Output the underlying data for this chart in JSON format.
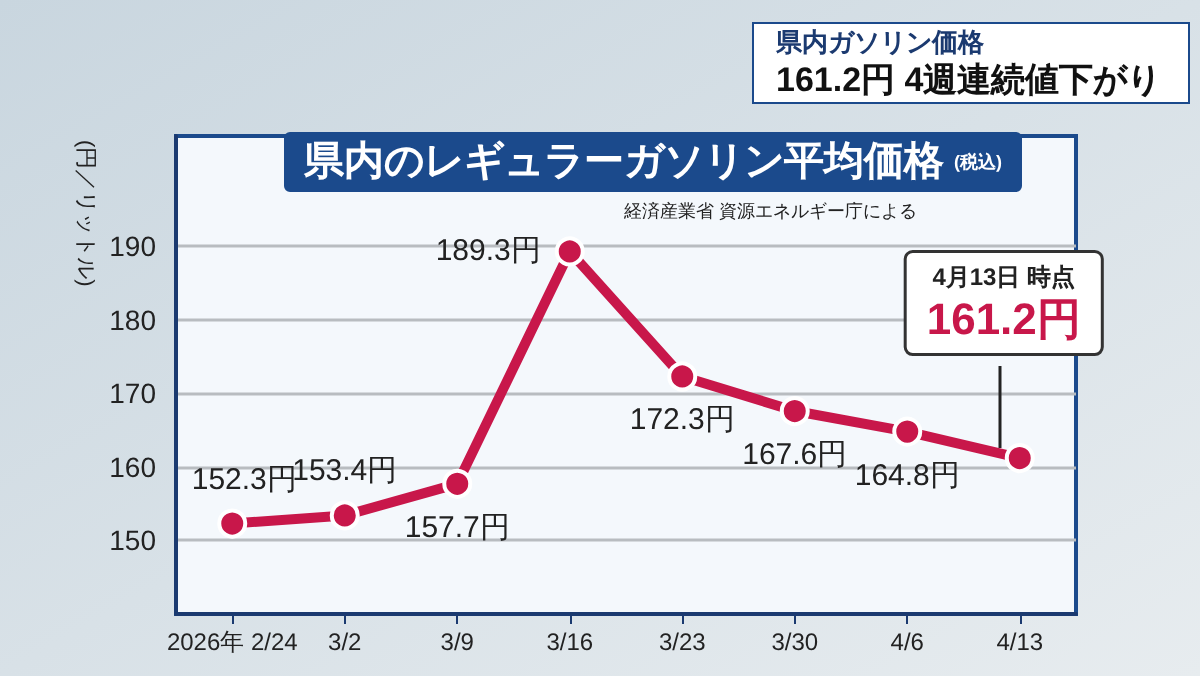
{
  "chart_data": {
    "type": "line",
    "title": "県内のレギュラーガソリン平均価格",
    "subtitle": "(税込)",
    "ylabel": "(円／リットル)",
    "categories": [
      "2026年 2/24",
      "3/2",
      "3/9",
      "3/16",
      "3/23",
      "3/30",
      "4/6",
      "4/13"
    ],
    "series": [
      {
        "color": "#c8174a",
        "values": [
          152.3,
          153.4,
          157.7,
          189.3,
          172.3,
          167.6,
          164.8,
          161.2
        ],
        "value_labels": [
          "152.3円",
          "153.4円",
          "157.7円",
          "189.3円",
          "172.3円",
          "167.6円",
          "164.8円",
          "161.2円"
        ]
      }
    ],
    "ylim": [
      140,
      205
    ],
    "yticks": [
      150,
      160,
      170,
      180,
      190
    ],
    "grid": "y",
    "marker": "circle",
    "line_style": "solid",
    "annotations": [
      "県内ガソリン価格",
      "161.2円 4週連続値下がり",
      "経済産業省 資源エネルギー庁による",
      "4月13日 時点"
    ]
  }
}
